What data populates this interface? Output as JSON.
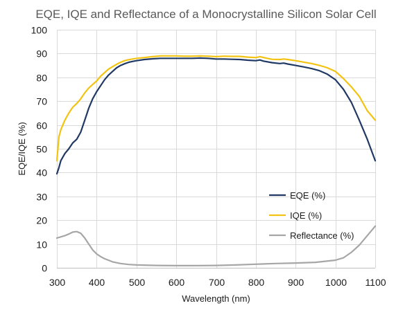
{
  "chart_data": {
    "type": "line",
    "title": "EQE, IQE and Reflectance of a Monocrystalline Silicon Solar Cell",
    "xlabel": "Wavelength (nm)",
    "ylabel": "EQE/IQE (%)",
    "xlim": [
      300,
      1100
    ],
    "ylim": [
      0,
      100
    ],
    "xticks": [
      "300",
      "400",
      "500",
      "600",
      "700",
      "800",
      "900",
      "1000",
      "1100"
    ],
    "yticks": [
      "0",
      "10",
      "20",
      "30",
      "40",
      "50",
      "60",
      "70",
      "80",
      "90",
      "100"
    ],
    "grid": true,
    "legend_position": "lower-right",
    "series": [
      {
        "name": "EQE (%)",
        "color": "#1f3864",
        "x": [
          300,
          305,
          310,
          320,
          330,
          340,
          350,
          360,
          370,
          380,
          390,
          400,
          410,
          420,
          430,
          440,
          450,
          460,
          470,
          480,
          490,
          500,
          520,
          540,
          560,
          580,
          600,
          620,
          640,
          660,
          680,
          700,
          720,
          740,
          760,
          780,
          800,
          810,
          820,
          840,
          860,
          870,
          880,
          900,
          920,
          940,
          960,
          980,
          1000,
          1020,
          1040,
          1060,
          1080,
          1100
        ],
        "y": [
          39.5,
          42,
          45,
          48,
          50,
          52.5,
          54,
          57,
          62,
          67,
          71,
          74,
          76.5,
          79,
          81,
          82.5,
          84,
          85,
          85.7,
          86.3,
          86.7,
          87,
          87.5,
          87.8,
          88,
          88,
          88,
          88,
          88,
          88.1,
          88,
          87.7,
          87.7,
          87.6,
          87.5,
          87.2,
          87,
          87.3,
          86.8,
          86.2,
          85.8,
          86,
          85.6,
          85,
          84.4,
          83.7,
          82.8,
          81.3,
          79,
          75,
          69.5,
          62,
          54,
          45
        ]
      },
      {
        "name": "IQE (%)",
        "color": "#f2c311",
        "x": [
          300,
          305,
          310,
          320,
          330,
          340,
          350,
          360,
          370,
          380,
          390,
          400,
          410,
          420,
          430,
          440,
          450,
          460,
          470,
          480,
          490,
          500,
          520,
          540,
          560,
          580,
          600,
          620,
          640,
          660,
          680,
          700,
          720,
          740,
          760,
          780,
          800,
          810,
          820,
          840,
          860,
          870,
          880,
          900,
          920,
          940,
          960,
          980,
          1000,
          1020,
          1040,
          1060,
          1080,
          1100
        ],
        "y": [
          45,
          55,
          58,
          62,
          65,
          67.5,
          69,
          71,
          73.5,
          75.5,
          77,
          78.5,
          80.5,
          82,
          83.5,
          84.5,
          85.5,
          86.3,
          87,
          87.4,
          87.7,
          88,
          88.3,
          88.7,
          89,
          89,
          89,
          88.9,
          88.9,
          89,
          88.9,
          88.7,
          88.9,
          88.8,
          88.8,
          88.5,
          88.3,
          88.7,
          88.3,
          87.6,
          87.5,
          87.7,
          87.5,
          87,
          86.4,
          85.8,
          85,
          84,
          82.5,
          79.5,
          76,
          72,
          66,
          62
        ]
      },
      {
        "name": "Reflectance (%)",
        "color": "#a6a6a6",
        "x": [
          300,
          310,
          320,
          330,
          340,
          350,
          360,
          370,
          380,
          390,
          400,
          410,
          420,
          440,
          460,
          480,
          500,
          550,
          600,
          650,
          700,
          750,
          800,
          850,
          900,
          950,
          1000,
          1020,
          1040,
          1060,
          1080,
          1100
        ],
        "y": [
          12.5,
          13,
          13.5,
          14.2,
          15,
          15.2,
          14.5,
          12.5,
          10,
          7.5,
          5.8,
          4.7,
          3.8,
          2.5,
          1.8,
          1.4,
          1.2,
          1.0,
          0.9,
          0.9,
          1.0,
          1.2,
          1.5,
          1.8,
          2.0,
          2.3,
          3.2,
          4.2,
          6.5,
          9.5,
          13.5,
          17.5
        ]
      }
    ]
  }
}
